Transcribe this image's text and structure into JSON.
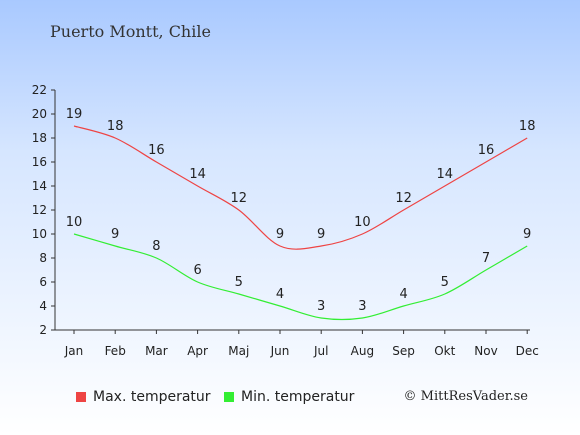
{
  "title": "Puerto Montt, Chile",
  "copyright": "© MittResVader.se",
  "colors": {
    "max": "#ee4444",
    "min": "#33ee33"
  },
  "chart_data": {
    "type": "line",
    "categories": [
      "Jan",
      "Feb",
      "Mar",
      "Apr",
      "Maj",
      "Jun",
      "Jul",
      "Aug",
      "Sep",
      "Okt",
      "Nov",
      "Dec"
    ],
    "series": [
      {
        "name": "Max. temperatur",
        "values": [
          19,
          18,
          16,
          14,
          12,
          9,
          9,
          10,
          12,
          14,
          16,
          18
        ]
      },
      {
        "name": "Min. temperatur",
        "values": [
          10,
          9,
          8,
          6,
          5,
          4,
          3,
          3,
          4,
          5,
          7,
          9
        ]
      }
    ],
    "ylim": [
      2,
      22
    ],
    "yticks": [
      2,
      4,
      6,
      8,
      10,
      12,
      14,
      16,
      18,
      20,
      22
    ],
    "legend": "bottom-left",
    "grid": false
  }
}
